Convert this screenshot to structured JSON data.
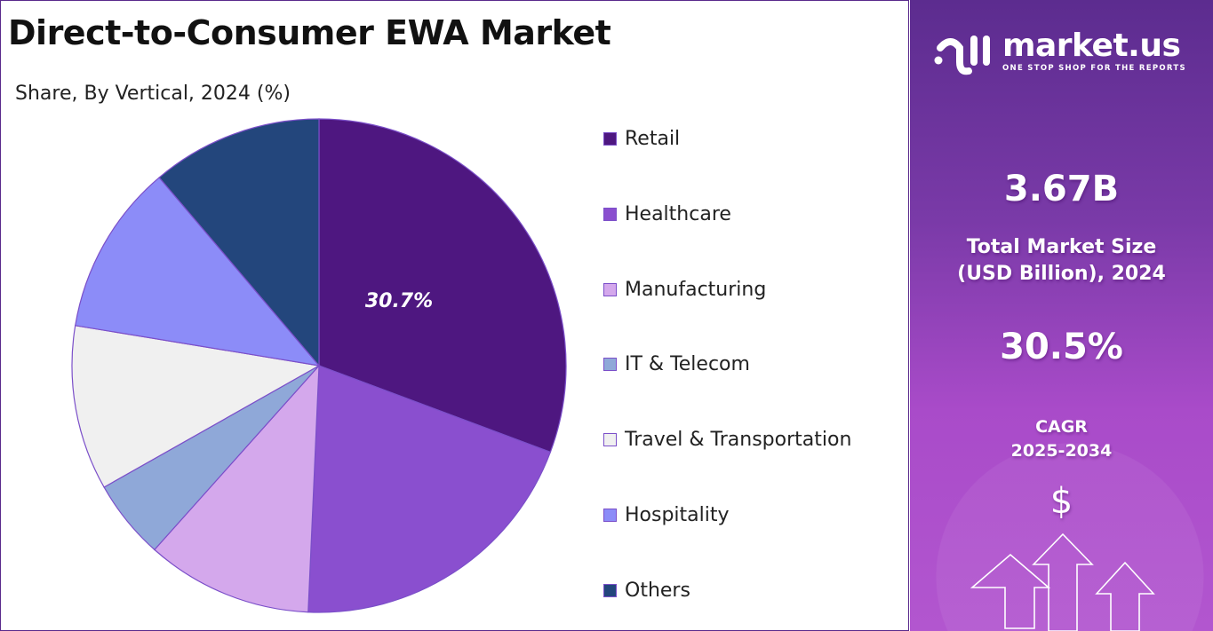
{
  "title": "Direct-to-Consumer EWA Market",
  "subtitle": "Share, By Vertical, 2024 (%)",
  "chart_data": {
    "type": "pie",
    "title": "Direct-to-Consumer EWA Market",
    "subtitle": "Share, By Vertical, 2024 (%)",
    "categories": [
      "Retail",
      "Healthcare",
      "Manufacturing",
      "IT & Telecom",
      "Travel & Transportation",
      "Hospitality",
      "Others"
    ],
    "values": [
      30.7,
      20.0,
      10.9,
      5.2,
      10.8,
      11.2,
      11.2
    ],
    "colors": [
      "#4e1780",
      "#8a4fcf",
      "#d4a8ec",
      "#8fa8d8",
      "#f0f0f0",
      "#8c8cf8",
      "#23467c"
    ],
    "data_labels": [
      {
        "category": "Retail",
        "text": "30.7%"
      }
    ],
    "legend_position": "right"
  },
  "sidebar": {
    "logo": {
      "name": "market.us",
      "tagline": "ONE STOP SHOP FOR THE REPORTS"
    },
    "market_size_value": "3.67B",
    "market_size_label_1": "Total Market Size",
    "market_size_label_2": "(USD Billion), 2024",
    "cagr_value": "30.5%",
    "cagr_label_1": "CAGR",
    "cagr_label_2": "2025-2034",
    "icons": [
      "dollar-icon",
      "growth-arrows-icon"
    ]
  }
}
